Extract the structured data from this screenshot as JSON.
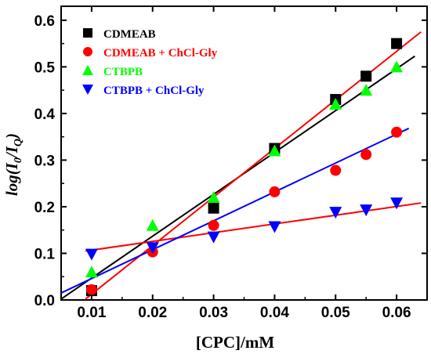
{
  "chart_data": {
    "type": "scatter",
    "xlabel": "[CPC]/mM",
    "ylabel": "log(I0/IQ)",
    "xlim": [
      0.005,
      0.065
    ],
    "ylim": [
      0.0,
      0.63
    ],
    "xticks": [
      "0.01",
      "0.02",
      "0.03",
      "0.04",
      "0.05",
      "0.06"
    ],
    "yticks": [
      "0.0",
      "0.1",
      "0.2",
      "0.3",
      "0.4",
      "0.5",
      "0.6"
    ],
    "legend_position": "top-left",
    "grid": false,
    "series": [
      {
        "name": "CDMEAB",
        "marker": "square",
        "color": "#000000",
        "x": [
          0.01,
          0.03,
          0.04,
          0.05,
          0.055,
          0.06
        ],
        "y": [
          0.02,
          0.197,
          0.325,
          0.43,
          0.48,
          0.55
        ],
        "fit": {
          "x": [
            0.005,
            0.063
          ],
          "y": [
            0.002,
            0.523
          ]
        }
      },
      {
        "name": "CDMEAB + ChCl-Gly",
        "marker": "circle",
        "color": "#ff0000",
        "x": [
          0.01,
          0.02,
          0.03,
          0.04,
          0.05,
          0.055,
          0.06
        ],
        "y": [
          0.022,
          0.103,
          0.16,
          0.232,
          0.278,
          0.312,
          0.36
        ],
        "fit": {
          "x": [
            0.009,
            0.064
          ],
          "y": [
            0.105,
            0.208
          ]
        }
      },
      {
        "name": "CTBPB",
        "marker": "triangle-up",
        "color": "#00ff00",
        "x": [
          0.01,
          0.02,
          0.03,
          0.04,
          0.05,
          0.055,
          0.06
        ],
        "y": [
          0.06,
          0.16,
          0.22,
          0.32,
          0.42,
          0.45,
          0.5
        ],
        "fit": {
          "x": [
            0.009,
            0.064
          ],
          "y": [
            0.002,
            0.575
          ]
        }
      },
      {
        "name": "CTBPB + ChCl-Gly",
        "marker": "triangle-down",
        "color": "#0000ff",
        "x": [
          0.01,
          0.02,
          0.03,
          0.04,
          0.05,
          0.055,
          0.06
        ],
        "y": [
          0.098,
          0.112,
          0.135,
          0.157,
          0.188,
          0.193,
          0.208
        ],
        "fit": {
          "x": [
            0.005,
            0.062
          ],
          "y": [
            0.015,
            0.368
          ]
        }
      }
    ]
  }
}
